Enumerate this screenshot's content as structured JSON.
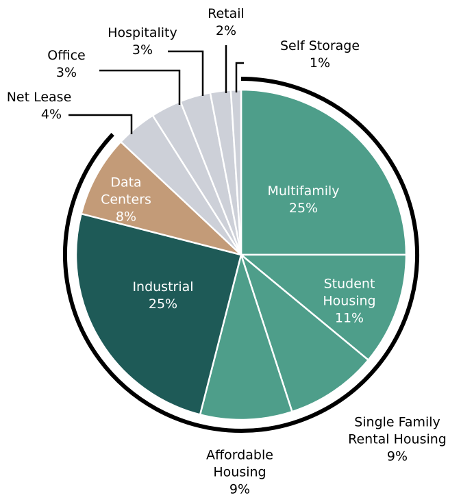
{
  "chart_data": {
    "type": "pie",
    "categories": [
      "Multifamily",
      "Student Housing",
      "Single Family Rental Housing",
      "Affordable Housing",
      "Industrial",
      "Data Centers",
      "Net Lease",
      "Office",
      "Hospitality",
      "Retail",
      "Self Storage"
    ],
    "values": [
      25,
      11,
      9,
      9,
      25,
      8,
      4,
      3,
      3,
      2,
      1
    ],
    "value_labels": [
      "25%",
      "11%",
      "9%",
      "9%",
      "25%",
      "8%",
      "4%",
      "3%",
      "3%",
      "2%",
      "1%"
    ],
    "colors": [
      "#4e9e8a",
      "#4e9e8a",
      "#4e9e8a",
      "#4e9e8a",
      "#1e5a57",
      "#c39b78",
      "#cdd0d8",
      "#cdd0d8",
      "#cdd0d8",
      "#cdd0d8",
      "#cdd0d8"
    ]
  }
}
